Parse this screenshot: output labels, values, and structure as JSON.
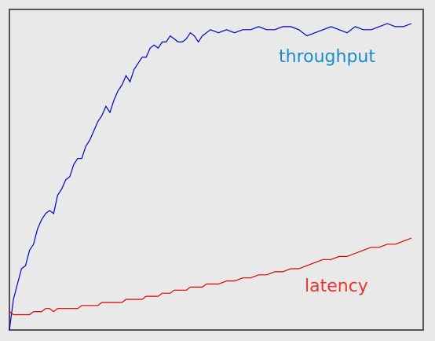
{
  "chart_data": {
    "type": "line",
    "title": "",
    "xlabel": "",
    "ylabel": "",
    "xlim": [
      0,
      100
    ],
    "ylim": [
      0,
      100
    ],
    "grid": false,
    "legend": "inline labels",
    "series": [
      {
        "name": "throughput",
        "color": "#0000cc",
        "label_color": "#1a8ccc",
        "x": [
          0,
          1,
          2,
          3,
          4,
          5,
          6,
          7,
          8,
          9,
          10,
          11,
          12,
          13,
          14,
          15,
          16,
          17,
          18,
          19,
          20,
          21,
          22,
          23,
          24,
          25,
          26,
          27,
          28,
          29,
          30,
          31,
          32,
          33,
          34,
          35,
          36,
          37,
          38,
          39,
          40,
          41,
          42,
          43,
          44,
          45,
          46,
          47,
          48,
          49,
          50,
          52,
          54,
          56,
          58,
          60,
          62,
          64,
          66,
          68,
          70,
          72,
          74,
          76,
          78,
          80,
          82,
          84,
          86,
          88,
          90,
          92,
          94,
          96,
          98,
          100
        ],
        "values": [
          0,
          10,
          15,
          20,
          21,
          26,
          28,
          33,
          36,
          38,
          39,
          38,
          44,
          46,
          49,
          50,
          54,
          56,
          56,
          60,
          62,
          65,
          68,
          70,
          73,
          71,
          75,
          78,
          80,
          83,
          81,
          85,
          87,
          89,
          89,
          92,
          93,
          92,
          94,
          94,
          96,
          95,
          94,
          94,
          95,
          97,
          96,
          94,
          96,
          97,
          98,
          97,
          98,
          97,
          98,
          98,
          99,
          98,
          98,
          99,
          99,
          98,
          96,
          97,
          98,
          99,
          98,
          97,
          99,
          98,
          98,
          99,
          100,
          99,
          99,
          100
        ]
      },
      {
        "name": "latency",
        "color": "#e00000",
        "label_color": "#ee3333",
        "x": [
          0,
          1,
          2,
          3,
          4,
          5,
          6,
          7,
          8,
          9,
          10,
          11,
          12,
          13,
          14,
          15,
          16,
          17,
          18,
          19,
          20,
          21,
          22,
          23,
          24,
          25,
          26,
          27,
          28,
          29,
          30,
          31,
          32,
          33,
          34,
          35,
          36,
          37,
          38,
          39,
          40,
          41,
          42,
          43,
          44,
          45,
          46,
          47,
          48,
          49,
          50,
          52,
          54,
          56,
          58,
          60,
          62,
          64,
          66,
          68,
          70,
          72,
          74,
          76,
          78,
          80,
          82,
          84,
          86,
          88,
          90,
          92,
          94,
          96,
          98,
          100
        ],
        "values": [
          6,
          5,
          5,
          5,
          5,
          5,
          6,
          6,
          6,
          7,
          7,
          6,
          7,
          7,
          7,
          7,
          7,
          7,
          8,
          8,
          8,
          8,
          8,
          9,
          9,
          9,
          9,
          9,
          9,
          10,
          10,
          10,
          10,
          10,
          11,
          11,
          11,
          11,
          12,
          12,
          12,
          13,
          13,
          13,
          13,
          14,
          14,
          14,
          14,
          15,
          15,
          15,
          16,
          16,
          17,
          17,
          18,
          18,
          19,
          19,
          20,
          20,
          21,
          22,
          23,
          23,
          24,
          24,
          25,
          26,
          27,
          27,
          28,
          28,
          29,
          30
        ]
      }
    ]
  }
}
